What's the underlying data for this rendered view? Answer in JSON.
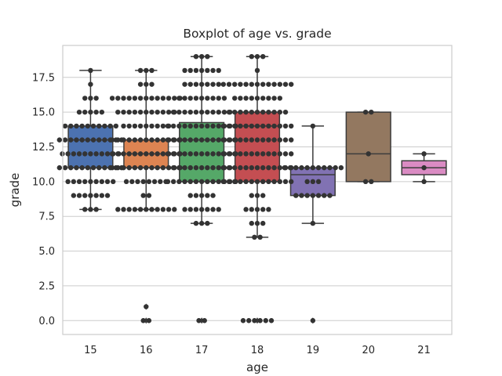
{
  "chart_data": {
    "type": "boxplot",
    "title": "Boxplot of age vs. grade",
    "xlabel": "age",
    "ylabel": "grade",
    "categories": [
      "15",
      "16",
      "17",
      "18",
      "19",
      "20",
      "21"
    ],
    "ylim": [
      -1,
      19.8
    ],
    "yticks": [
      0.0,
      2.5,
      5.0,
      7.5,
      10.0,
      12.5,
      15.0,
      17.5
    ],
    "ytick_labels": [
      "0.0",
      "2.5",
      "5.0",
      "7.5",
      "10.0",
      "12.5",
      "15.0",
      "17.5"
    ],
    "grid": true,
    "boxes": [
      {
        "category": "15",
        "color": "#4c72b0",
        "whisker_low": 8,
        "q1": 11,
        "median": 13,
        "q3": 14,
        "whisker_high": 18,
        "outliers": []
      },
      {
        "category": "16",
        "color": "#dd8452",
        "whisker_low": 8,
        "q1": 11,
        "median": 12,
        "q3": 13,
        "whisker_high": 18,
        "outliers": [
          0,
          1
        ]
      },
      {
        "category": "17",
        "color": "#55a868",
        "whisker_low": 7,
        "q1": 10,
        "median": 13,
        "q3": 14.25,
        "whisker_high": 19,
        "outliers": [
          0
        ]
      },
      {
        "category": "18",
        "color": "#c44e52",
        "whisker_low": 6,
        "q1": 10,
        "median": 14,
        "q3": 15,
        "whisker_high": 19,
        "outliers": [
          0
        ]
      },
      {
        "category": "19",
        "color": "#8172b3",
        "whisker_low": 7,
        "q1": 9,
        "median": 10.5,
        "q3": 11,
        "whisker_high": 14,
        "outliers": [
          0
        ]
      },
      {
        "category": "20",
        "color": "#937860",
        "whisker_low": 10,
        "q1": 10,
        "median": 12,
        "q3": 15,
        "whisker_high": 15,
        "outliers": []
      },
      {
        "category": "21",
        "color": "#da8bc3",
        "whisker_low": 10,
        "q1": 10.5,
        "median": 11,
        "q3": 11.5,
        "whisker_high": 12,
        "outliers": []
      }
    ],
    "swarm": [
      {
        "category": "15",
        "points": [
          [
            8,
            3
          ],
          [
            9,
            7
          ],
          [
            10,
            9
          ],
          [
            11,
            12
          ],
          [
            12,
            11
          ],
          [
            13,
            12
          ],
          [
            14,
            10
          ],
          [
            15,
            5
          ],
          [
            16,
            3
          ],
          [
            17,
            1
          ],
          [
            18,
            1
          ]
        ]
      },
      {
        "category": "16",
        "points": [
          [
            0,
            2
          ],
          [
            1,
            1
          ],
          [
            8,
            11
          ],
          [
            9,
            2
          ],
          [
            10,
            8
          ],
          [
            11,
            13
          ],
          [
            12,
            13
          ],
          [
            13,
            13
          ],
          [
            14,
            9
          ],
          [
            15,
            11
          ],
          [
            16,
            13
          ],
          [
            17,
            3
          ],
          [
            18,
            3
          ]
        ]
      },
      {
        "category": "17",
        "points": [
          [
            0,
            2
          ],
          [
            7,
            3
          ],
          [
            8,
            7
          ],
          [
            9,
            5
          ],
          [
            10,
            13
          ],
          [
            11,
            11
          ],
          [
            12,
            13
          ],
          [
            13,
            13
          ],
          [
            14,
            13
          ],
          [
            15,
            11
          ],
          [
            16,
            9
          ],
          [
            17,
            7
          ],
          [
            18,
            7
          ],
          [
            19,
            3
          ]
        ]
      },
      {
        "category": "18",
        "points": [
          [
            0,
            6
          ],
          [
            6,
            2
          ],
          [
            7,
            3
          ],
          [
            8,
            5
          ],
          [
            9,
            3
          ],
          [
            10,
            13
          ],
          [
            11,
            13
          ],
          [
            12,
            13
          ],
          [
            13,
            13
          ],
          [
            14,
            13
          ],
          [
            15,
            11
          ],
          [
            16,
            9
          ],
          [
            17,
            13
          ],
          [
            18,
            1
          ],
          [
            19,
            3
          ]
        ]
      },
      {
        "category": "19",
        "points": [
          [
            0,
            1
          ],
          [
            7,
            1
          ],
          [
            9,
            7
          ],
          [
            10,
            3
          ],
          [
            11,
            11
          ],
          [
            14,
            1
          ]
        ]
      },
      {
        "category": "20",
        "points": [
          [
            10,
            2
          ],
          [
            12,
            1
          ],
          [
            15,
            2
          ]
        ]
      },
      {
        "category": "21",
        "points": [
          [
            10,
            1
          ],
          [
            11,
            1
          ],
          [
            12,
            1
          ]
        ]
      }
    ]
  }
}
